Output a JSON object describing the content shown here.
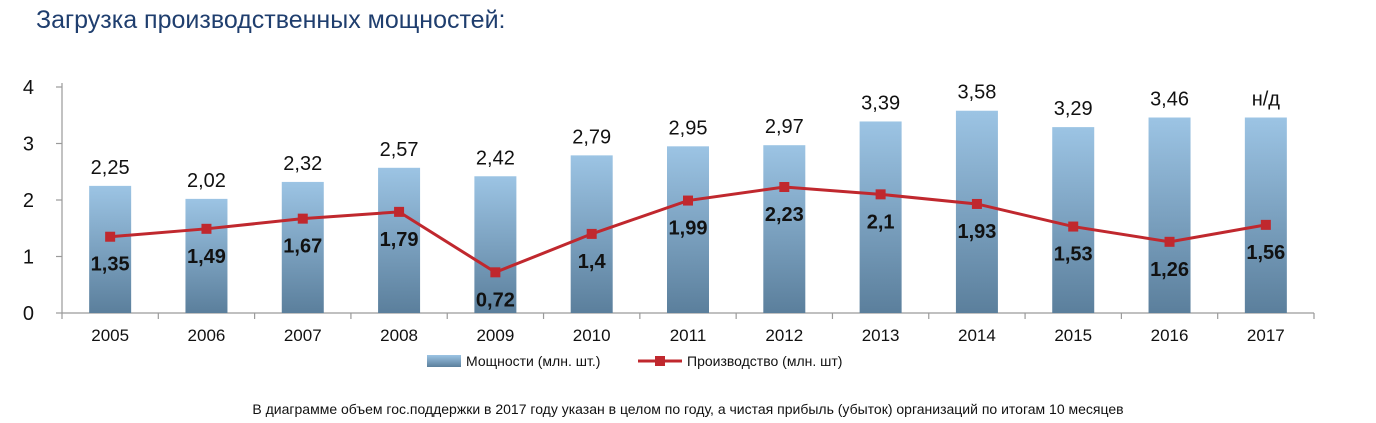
{
  "title": "Загрузка производственных мощностей:",
  "footnote": "В диаграмме объем гос.поддержки в 2017 году указан в целом по году, а чистая прибыль (убыток) организаций по итогам 10 месяцев",
  "colors": {
    "title": "#1f3e6e",
    "bar_top": "#9cc4e4",
    "bar_bottom": "#5b7f9c",
    "line": "#c0282e",
    "axis": "#9a9a9a"
  },
  "chart_data": {
    "type": "bar",
    "title": "",
    "xlabel": "",
    "ylabel": "",
    "ylim": [
      0,
      4
    ],
    "yticks": [
      "0",
      "1",
      "2",
      "3",
      "4"
    ],
    "grid": false,
    "legend_position": "bottom",
    "categories": [
      "2005",
      "2006",
      "2007",
      "2008",
      "2009",
      "2010",
      "2011",
      "2012",
      "2013",
      "2014",
      "2015",
      "2016",
      "2017"
    ],
    "series": [
      {
        "name": "Мощности (млн. шт.)",
        "type": "bar",
        "values": [
          2.25,
          2.02,
          2.32,
          2.57,
          2.42,
          2.79,
          2.95,
          2.97,
          3.39,
          3.58,
          3.29,
          3.46,
          3.46
        ],
        "labels": [
          "2,25",
          "2,02",
          "2,32",
          "2,57",
          "2,42",
          "2,79",
          "2,95",
          "2,97",
          "3,39",
          "3,58",
          "3,29",
          "3,46",
          "н/д"
        ]
      },
      {
        "name": "Производство (млн. шт)",
        "type": "line",
        "values": [
          1.35,
          1.49,
          1.67,
          1.79,
          0.72,
          1.4,
          1.99,
          2.23,
          2.1,
          1.93,
          1.53,
          1.26,
          1.56
        ],
        "labels": [
          "1,35",
          "1,49",
          "1,67",
          "1,79",
          "0,72",
          "1,4",
          "1,99",
          "2,23",
          "2,1",
          "1,93",
          "1,53",
          "1,26",
          "1,56"
        ]
      }
    ]
  }
}
